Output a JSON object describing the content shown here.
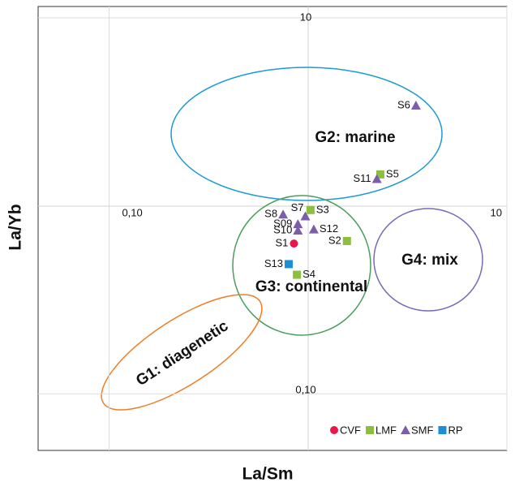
{
  "chart_data": {
    "type": "scatter",
    "xlabel": "La/Sm",
    "ylabel": "La/Yb",
    "xscale": "log",
    "yscale": "log",
    "grid": true,
    "legend": "lower right",
    "xlim": [
      0.044,
      10
    ],
    "ylim": [
      0.05,
      11.5
    ],
    "xticks": [
      {
        "value": 0.1,
        "label": "0,10"
      },
      10
    ],
    "yticks": [
      {
        "value": 0.1,
        "label": "0,10"
      },
      10
    ],
    "annotations": [
      "G2: marine",
      "G3: continental",
      "G4: mix",
      "G1: diagenetic"
    ],
    "series": [
      {
        "name": "CVF",
        "color": "#e8174a",
        "marker": "circle",
        "labels": [
          "S1"
        ],
        "x": [
          0.85
        ],
        "values": [
          0.63
        ]
      },
      {
        "name": "LMF",
        "color": "#8cbf3f",
        "marker": "square",
        "labels": [
          "S5",
          "S3",
          "S2",
          "S4"
        ],
        "x": [
          2.31,
          1.03,
          1.57,
          0.88
        ],
        "values": [
          1.47,
          0.95,
          0.65,
          0.43
        ]
      },
      {
        "name": "SMF",
        "color": "#7b5ea7",
        "marker": "triangle",
        "labels": [
          "S6",
          "S11",
          "S7",
          "S8",
          "S09",
          "S10",
          "S12"
        ],
        "x": [
          3.49,
          2.22,
          0.97,
          0.75,
          0.89,
          0.89,
          1.07
        ],
        "values": [
          3.42,
          1.39,
          0.88,
          0.9,
          0.8,
          0.74,
          0.75
        ]
      },
      {
        "name": "RP",
        "color": "#1b8fd6",
        "marker": "square",
        "labels": [
          "S13"
        ],
        "x": [
          0.8
        ],
        "values": [
          0.49
        ]
      }
    ]
  }
}
